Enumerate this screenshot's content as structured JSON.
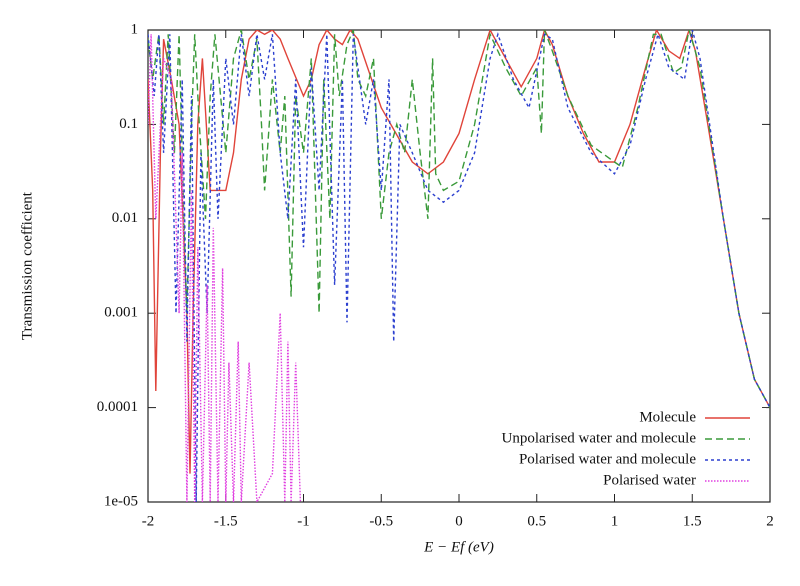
{
  "chart_data": {
    "type": "line",
    "log_y": true,
    "xlabel": "E − Ef (eV)",
    "ylabel": "Transmission coefficient",
    "xlim": [
      -2,
      2
    ],
    "xticks": [
      -2,
      -1.5,
      -1,
      -0.5,
      0,
      0.5,
      1,
      1.5,
      2
    ],
    "ylim": [
      1e-05,
      1
    ],
    "yticks": [
      {
        "value": 1e-05,
        "label": "1e-05"
      },
      0.0001,
      0.001,
      0.01,
      0.1,
      1
    ],
    "legend": "lower right",
    "series": [
      {
        "name": "Molecule",
        "color": "#e0443a",
        "x": [
          -2,
          -1.97,
          -1.95,
          -1.92,
          -1.9,
          -1.85,
          -1.8,
          -1.75,
          -1.73,
          -1.71,
          -1.68,
          -1.65,
          -1.6,
          -1.55,
          -1.5,
          -1.45,
          -1.4,
          -1.35,
          -1.3,
          -1.25,
          -1.2,
          -1.15,
          -1.1,
          -1.0,
          -0.95,
          -0.9,
          -0.85,
          -0.8,
          -0.75,
          -0.7,
          -0.65,
          -0.5,
          -0.3,
          -0.2,
          -0.1,
          0,
          0.1,
          0.2,
          0.3,
          0.4,
          0.5,
          0.55,
          0.6,
          0.7,
          0.8,
          0.9,
          1.0,
          1.1,
          1.2,
          1.27,
          1.35,
          1.42,
          1.48,
          1.52,
          1.6,
          1.7,
          1.8,
          1.9,
          2.0
        ],
        "values": [
          0.3,
          0.02,
          0.00015,
          0.05,
          0.8,
          0.3,
          0.1,
          0.001,
          2e-05,
          0.001,
          0.1,
          0.5,
          0.02,
          0.02,
          0.02,
          0.05,
          0.3,
          0.8,
          1,
          0.9,
          1,
          0.8,
          0.5,
          0.2,
          0.3,
          0.7,
          1,
          0.8,
          0.7,
          1,
          0.8,
          0.15,
          0.04,
          0.03,
          0.04,
          0.08,
          0.3,
          1,
          0.5,
          0.25,
          0.5,
          1,
          0.7,
          0.2,
          0.08,
          0.04,
          0.04,
          0.1,
          0.4,
          1,
          0.6,
          0.5,
          1,
          0.6,
          0.1,
          0.01,
          0.001,
          0.0002,
          0.0001
        ]
      },
      {
        "name": "Unpolarised water and molecule",
        "color": "#3a9a3a",
        "x": [
          -2,
          -1.97,
          -1.93,
          -1.9,
          -1.87,
          -1.83,
          -1.8,
          -1.77,
          -1.75,
          -1.72,
          -1.7,
          -1.67,
          -1.63,
          -1.6,
          -1.57,
          -1.5,
          -1.45,
          -1.4,
          -1.35,
          -1.3,
          -1.27,
          -1.25,
          -1.2,
          -1.15,
          -1.12,
          -1.08,
          -1.05,
          -1.0,
          -0.95,
          -0.9,
          -0.87,
          -0.83,
          -0.8,
          -0.77,
          -0.72,
          -0.68,
          -0.65,
          -0.6,
          -0.55,
          -0.5,
          -0.45,
          -0.4,
          -0.35,
          -0.3,
          -0.25,
          -0.2,
          -0.17,
          -0.15,
          -0.1,
          0,
          0.1,
          0.2,
          0.3,
          0.4,
          0.5,
          0.53,
          0.55,
          0.6,
          0.7,
          0.85,
          1.0,
          1.05,
          1.15,
          1.25,
          1.3,
          1.38,
          1.43,
          1.48,
          1.55,
          1.7,
          1.8,
          1.9,
          2.0
        ],
        "values": [
          0.8,
          0.3,
          0.9,
          0.1,
          0.9,
          0.05,
          0.9,
          0.01,
          0.001,
          0.1,
          0.9,
          0.1,
          0.01,
          0.2,
          0.9,
          0.05,
          0.5,
          1,
          0.3,
          0.8,
          0.1,
          0.02,
          0.3,
          0.05,
          0.2,
          0.0015,
          0.2,
          0.05,
          0.5,
          0.001,
          0.3,
          0.01,
          0.9,
          0.2,
          0.7,
          1,
          0.3,
          0.2,
          0.5,
          0.01,
          0.05,
          0.1,
          0.05,
          0.3,
          0.05,
          0.01,
          0.5,
          0.03,
          0.02,
          0.025,
          0.1,
          0.9,
          0.4,
          0.2,
          0.4,
          0.08,
          1,
          0.6,
          0.2,
          0.06,
          0.04,
          0.035,
          0.15,
          0.9,
          0.9,
          0.35,
          0.4,
          1,
          0.4,
          0.01,
          0.001,
          0.0002,
          0.0001
        ]
      },
      {
        "name": "Polarised water and molecule",
        "color": "#2b3fcf",
        "x": [
          -2,
          -1.96,
          -1.93,
          -1.9,
          -1.86,
          -1.82,
          -1.78,
          -1.75,
          -1.72,
          -1.69,
          -1.66,
          -1.62,
          -1.58,
          -1.55,
          -1.5,
          -1.45,
          -1.4,
          -1.35,
          -1.3,
          -1.25,
          -1.2,
          -1.15,
          -1.1,
          -1.05,
          -1.0,
          -0.95,
          -0.9,
          -0.85,
          -0.8,
          -0.75,
          -0.72,
          -0.68,
          -0.6,
          -0.55,
          -0.5,
          -0.45,
          -0.42,
          -0.38,
          -0.3,
          -0.2,
          -0.1,
          0,
          0.1,
          0.2,
          0.25,
          0.35,
          0.45,
          0.55,
          0.6,
          0.7,
          0.85,
          1.0,
          1.1,
          1.2,
          1.28,
          1.35,
          1.45,
          1.5,
          1.55,
          1.7,
          1.8,
          1.9,
          2.0
        ],
        "values": [
          0.9,
          0.2,
          0.9,
          0.05,
          0.9,
          0.001,
          0.3,
          0.0005,
          0.2,
          1e-05,
          0.05,
          0.001,
          0.3,
          0.01,
          0.5,
          0.1,
          0.9,
          0.2,
          0.9,
          0.3,
          0.9,
          0.05,
          0.01,
          0.3,
          0.005,
          0.4,
          0.02,
          0.9,
          0.002,
          0.3,
          0.0008,
          0.9,
          0.1,
          0.3,
          0.02,
          0.3,
          0.0005,
          0.1,
          0.05,
          0.02,
          0.015,
          0.02,
          0.05,
          0.5,
          0.9,
          0.3,
          0.15,
          0.9,
          0.8,
          0.15,
          0.05,
          0.03,
          0.06,
          0.3,
          0.9,
          0.4,
          0.3,
          1,
          0.5,
          0.01,
          0.001,
          0.0002,
          0.0001
        ]
      },
      {
        "name": "Polarised water",
        "color": "#e040e0",
        "x": [
          -2,
          -1.98,
          -1.95,
          -1.9,
          -1.85,
          -1.8,
          -1.78,
          -1.75,
          -1.72,
          -1.7,
          -1.68,
          -1.65,
          -1.62,
          -1.6,
          -1.58,
          -1.55,
          -1.52,
          -1.5,
          -1.48,
          -1.45,
          -1.42,
          -1.4,
          -1.35,
          -1.3,
          -1.2,
          -1.15,
          -1.12,
          -1.1,
          -1.08,
          -1.05,
          -1.02
        ],
        "values": [
          0.1,
          0.9,
          0.01,
          0.5,
          0.3,
          0.001,
          0.05,
          1e-05,
          0.02,
          1e-05,
          0.005,
          1e-05,
          0.002,
          1e-05,
          0.008,
          1e-05,
          0.003,
          1e-05,
          0.0003,
          1e-05,
          0.0005,
          1e-05,
          0.0003,
          1e-05,
          2e-05,
          0.001,
          1e-05,
          0.0005,
          1e-05,
          0.0003,
          1e-05
        ]
      }
    ]
  }
}
